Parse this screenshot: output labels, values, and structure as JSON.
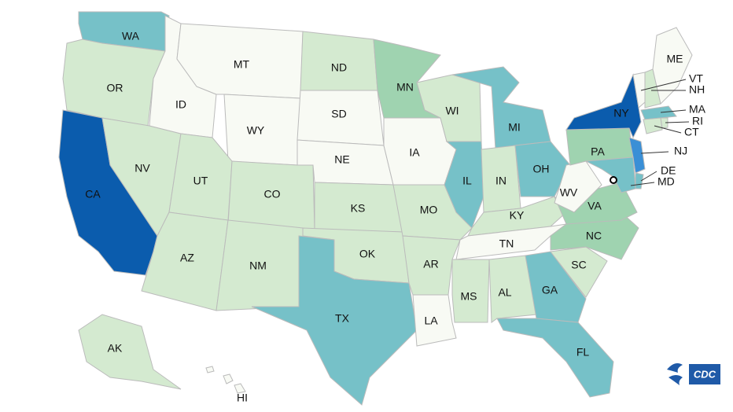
{
  "states": [
    {
      "abbr": "WA",
      "color": "#76c1c8"
    },
    {
      "abbr": "OR",
      "color": "#d4ead0"
    },
    {
      "abbr": "CA",
      "color": "#0b5cad"
    },
    {
      "abbr": "NV",
      "color": "#d4ead0"
    },
    {
      "abbr": "ID",
      "color": "#f8faf4"
    },
    {
      "abbr": "MT",
      "color": "#f8faf4"
    },
    {
      "abbr": "WY",
      "color": "#f8faf4"
    },
    {
      "abbr": "UT",
      "color": "#d4ead0"
    },
    {
      "abbr": "CO",
      "color": "#d4ead0"
    },
    {
      "abbr": "AZ",
      "color": "#d4ead0"
    },
    {
      "abbr": "NM",
      "color": "#d4ead0"
    },
    {
      "abbr": "ND",
      "color": "#d4ead0"
    },
    {
      "abbr": "SD",
      "color": "#f8faf4"
    },
    {
      "abbr": "NE",
      "color": "#f8faf4"
    },
    {
      "abbr": "KS",
      "color": "#d4ead0"
    },
    {
      "abbr": "OK",
      "color": "#d4ead0"
    },
    {
      "abbr": "TX",
      "color": "#76c1c8"
    },
    {
      "abbr": "MN",
      "color": "#9fd3b0"
    },
    {
      "abbr": "IA",
      "color": "#f8faf4"
    },
    {
      "abbr": "MO",
      "color": "#d4ead0"
    },
    {
      "abbr": "AR",
      "color": "#d4ead0"
    },
    {
      "abbr": "LA",
      "color": "#f8faf4"
    },
    {
      "abbr": "WI",
      "color": "#d4ead0"
    },
    {
      "abbr": "IL",
      "color": "#76c1c8"
    },
    {
      "abbr": "MI",
      "color": "#76c1c8"
    },
    {
      "abbr": "IN",
      "color": "#d4ead0"
    },
    {
      "abbr": "OH",
      "color": "#76c1c8"
    },
    {
      "abbr": "KY",
      "color": "#d4ead0"
    },
    {
      "abbr": "TN",
      "color": "#f8faf4"
    },
    {
      "abbr": "MS",
      "color": "#d4ead0"
    },
    {
      "abbr": "AL",
      "color": "#d4ead0"
    },
    {
      "abbr": "GA",
      "color": "#76c1c8"
    },
    {
      "abbr": "FL",
      "color": "#76c1c8"
    },
    {
      "abbr": "SC",
      "color": "#d4ead0"
    },
    {
      "abbr": "NC",
      "color": "#9fd3b0"
    },
    {
      "abbr": "VA",
      "color": "#9fd3b0"
    },
    {
      "abbr": "WV",
      "color": "#f8faf4"
    },
    {
      "abbr": "PA",
      "color": "#9fd3b0"
    },
    {
      "abbr": "NY",
      "color": "#0b5cad"
    },
    {
      "abbr": "NJ",
      "color": "#3a8fd6"
    },
    {
      "abbr": "DE",
      "color": "#76c1c8"
    },
    {
      "abbr": "MD",
      "color": "#76c1c8"
    },
    {
      "abbr": "VT",
      "color": "#f8faf4"
    },
    {
      "abbr": "NH",
      "color": "#d4ead0"
    },
    {
      "abbr": "ME",
      "color": "#f8faf4"
    },
    {
      "abbr": "MA",
      "color": "#76c1c8"
    },
    {
      "abbr": "RI",
      "color": "#d4ead0"
    },
    {
      "abbr": "CT",
      "color": "#d4ead0"
    },
    {
      "abbr": "AK",
      "color": "#d4ead0"
    },
    {
      "abbr": "HI",
      "color": "#f8faf4"
    }
  ],
  "logo": {
    "text": "CDC"
  }
}
